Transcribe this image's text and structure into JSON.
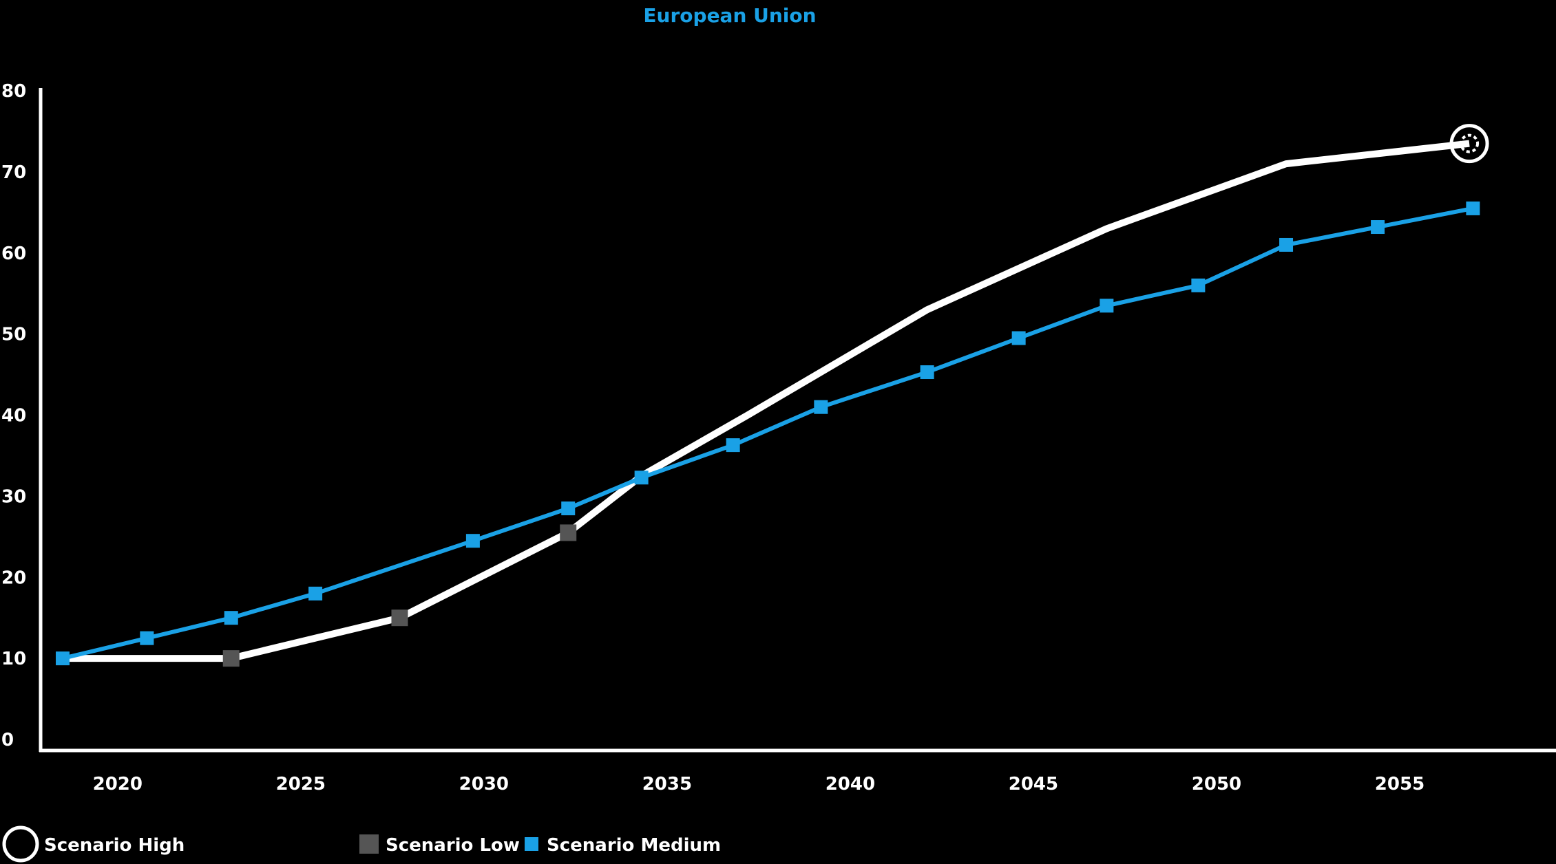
{
  "chart_data": {
    "type": "line",
    "title": "European Union",
    "xlabel": "",
    "ylabel": "",
    "x_ticks": [
      "2020",
      "2025",
      "2030",
      "2035",
      "2040",
      "2045",
      "2050",
      "2055"
    ],
    "y_ticks": [
      "0",
      "10",
      "20",
      "30",
      "40",
      "50",
      "60",
      "70",
      "80"
    ],
    "xlim": [
      2018.5,
      2057.5
    ],
    "ylim": [
      0,
      80
    ],
    "grid": false,
    "legend": {
      "placement": "bottom-left"
    },
    "series": [
      {
        "name": "Scenario High",
        "color": "#ffffff",
        "marker": "circle-target",
        "x": [
          2018.5,
          2023.1,
          2027.7,
          2032.3,
          2034.3,
          2037.2,
          2042.1,
          2047.0,
          2051.9,
          2056.9
        ],
        "y": [
          10,
          10,
          15,
          25.5,
          32.5,
          40,
          53,
          63,
          71,
          73.5
        ]
      },
      {
        "name": "Scenario Low",
        "color": "#555555",
        "marker": "square",
        "x": [
          2023.1,
          2027.7,
          2032.3
        ],
        "y": [
          10,
          15,
          25.5
        ]
      },
      {
        "name": "Scenario Medium",
        "color": "#1aa1e6",
        "marker": "square",
        "x": [
          2018.5,
          2020.8,
          2023.1,
          2025.4,
          2029.7,
          2032.3,
          2034.3,
          2036.8,
          2039.2,
          2042.1,
          2044.6,
          2047.0,
          2049.5,
          2051.9,
          2054.4,
          2057.0
        ],
        "y": [
          10,
          12.5,
          15,
          18,
          24.5,
          28.5,
          32.3,
          36.3,
          41,
          45.3,
          49.5,
          53.5,
          56,
          61,
          63.2,
          65.5
        ]
      }
    ]
  },
  "colors": {
    "background": "#000000",
    "axis": "#ffffff",
    "title": "#1aa1e6"
  }
}
